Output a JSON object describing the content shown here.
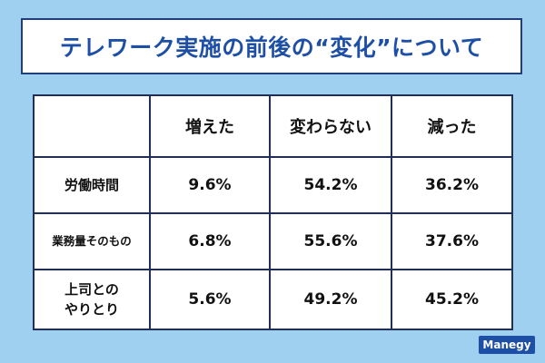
{
  "title": "テレワーク実施の前後の“変化”について",
  "table": {
    "columns": [
      "増えた",
      "変わらない",
      "減った"
    ],
    "rows": [
      {
        "label": "労働時間",
        "values": [
          "9.6%",
          "54.2%",
          "36.2%"
        ]
      },
      {
        "label": "業務量そのもの",
        "values": [
          "6.8%",
          "55.6%",
          "37.6%"
        ]
      },
      {
        "label_lines": [
          "上司との",
          "やりとり"
        ],
        "values": [
          "5.6%",
          "49.2%",
          "45.2%"
        ]
      }
    ]
  },
  "brand": "Manegy"
}
